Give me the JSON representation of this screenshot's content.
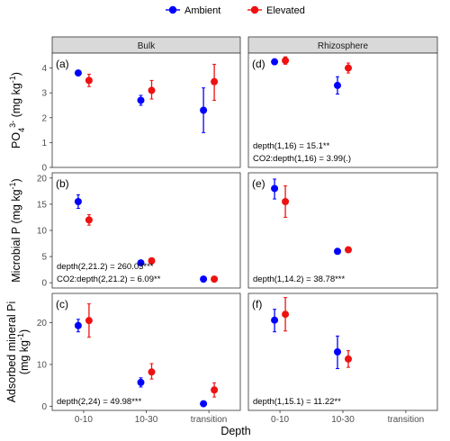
{
  "chart_data": {
    "type": "scatter",
    "xlabel": "Depth",
    "categories": [
      "0-10",
      "10-30",
      "transition"
    ],
    "legend": {
      "placement": "top",
      "entries": [
        {
          "name": "Ambient",
          "color": "#0000ff"
        },
        {
          "name": "Elevated",
          "color": "#ee1111"
        }
      ]
    },
    "columns": [
      "Bulk",
      "Rhizosphere"
    ],
    "rows": [
      {
        "ylabel_lines": [
          [
            "PO",
            "4",
            "3-",
            " (mg kg",
            "-1",
            ")"
          ]
        ],
        "ylim": [
          0,
          4.6
        ],
        "yticks": [
          0,
          1,
          2,
          3,
          4
        ]
      },
      {
        "ylabel_lines": [
          [
            "Microbial P (mg kg",
            "-1",
            ")"
          ]
        ],
        "ylim": [
          -1,
          21
        ],
        "yticks": [
          0,
          5,
          10,
          15,
          20
        ]
      },
      {
        "ylabel_lines": [
          [
            "Adsorbed mineral Pi"
          ],
          [
            "(mg kg",
            "-1",
            ")"
          ]
        ],
        "ylim": [
          -1,
          27
        ],
        "yticks": [
          0,
          10,
          20
        ]
      }
    ],
    "panels": [
      {
        "label": "(a)",
        "row": 0,
        "col": 0,
        "annotations": [],
        "series": [
          {
            "name": "Ambient",
            "points": [
              {
                "x": "0-10",
                "y": 3.8,
                "lo": 3.8,
                "hi": 3.8
              },
              {
                "x": "10-30",
                "y": 2.7,
                "lo": 2.5,
                "hi": 2.9
              },
              {
                "x": "transition",
                "y": 2.3,
                "lo": 1.4,
                "hi": 3.2
              }
            ]
          },
          {
            "name": "Elevated",
            "points": [
              {
                "x": "0-10",
                "y": 3.5,
                "lo": 3.25,
                "hi": 3.75
              },
              {
                "x": "10-30",
                "y": 3.1,
                "lo": 2.75,
                "hi": 3.5
              },
              {
                "x": "transition",
                "y": 3.45,
                "lo": 2.7,
                "hi": 4.15
              }
            ]
          }
        ]
      },
      {
        "label": "(d)",
        "row": 0,
        "col": 1,
        "annotations": [
          "depth(1,16) = 15.1**",
          "CO2:depth(1,16) = 3.99(.)"
        ],
        "series": [
          {
            "name": "Ambient",
            "points": [
              {
                "x": "0-10",
                "y": 4.25,
                "lo": 4.15,
                "hi": 4.35
              },
              {
                "x": "10-30",
                "y": 3.3,
                "lo": 2.95,
                "hi": 3.65
              }
            ]
          },
          {
            "name": "Elevated",
            "points": [
              {
                "x": "0-10",
                "y": 4.3,
                "lo": 4.15,
                "hi": 4.45
              },
              {
                "x": "10-30",
                "y": 4.0,
                "lo": 3.8,
                "hi": 4.2
              }
            ]
          }
        ]
      },
      {
        "label": "(b)",
        "row": 1,
        "col": 0,
        "annotations": [
          "depth(2,21.2) = 260.03***",
          "CO2:depth(2,21.2) = 6.09**"
        ],
        "series": [
          {
            "name": "Ambient",
            "points": [
              {
                "x": "0-10",
                "y": 15.5,
                "lo": 14.2,
                "hi": 16.8
              },
              {
                "x": "10-30",
                "y": 3.8,
                "lo": 3.6,
                "hi": 4.0
              },
              {
                "x": "transition",
                "y": 0.7,
                "lo": 0.6,
                "hi": 0.8
              }
            ]
          },
          {
            "name": "Elevated",
            "points": [
              {
                "x": "0-10",
                "y": 12.0,
                "lo": 11.0,
                "hi": 13.0
              },
              {
                "x": "10-30",
                "y": 4.2,
                "lo": 4.0,
                "hi": 4.4
              },
              {
                "x": "transition",
                "y": 0.7,
                "lo": 0.6,
                "hi": 0.8
              }
            ]
          }
        ]
      },
      {
        "label": "(e)",
        "row": 1,
        "col": 1,
        "annotations": [
          "depth(1,14.2) = 38.78***"
        ],
        "series": [
          {
            "name": "Ambient",
            "points": [
              {
                "x": "0-10",
                "y": 18.0,
                "lo": 16.0,
                "hi": 19.8
              },
              {
                "x": "10-30",
                "y": 6.0,
                "lo": 5.8,
                "hi": 6.2
              }
            ]
          },
          {
            "name": "Elevated",
            "points": [
              {
                "x": "0-10",
                "y": 15.5,
                "lo": 12.5,
                "hi": 18.5
              },
              {
                "x": "10-30",
                "y": 6.3,
                "lo": 5.9,
                "hi": 6.7
              }
            ]
          }
        ]
      },
      {
        "label": "(c)",
        "row": 2,
        "col": 0,
        "annotations": [
          "depth(2,24) = 49.98***"
        ],
        "series": [
          {
            "name": "Ambient",
            "points": [
              {
                "x": "0-10",
                "y": 19.3,
                "lo": 17.8,
                "hi": 20.8
              },
              {
                "x": "10-30",
                "y": 5.7,
                "lo": 4.6,
                "hi": 6.8
              },
              {
                "x": "transition",
                "y": 0.6,
                "lo": 0.4,
                "hi": 0.8
              }
            ]
          },
          {
            "name": "Elevated",
            "points": [
              {
                "x": "0-10",
                "y": 20.5,
                "lo": 16.5,
                "hi": 24.5
              },
              {
                "x": "10-30",
                "y": 8.2,
                "lo": 6.5,
                "hi": 10.2
              },
              {
                "x": "transition",
                "y": 3.9,
                "lo": 2.2,
                "hi": 5.6
              }
            ]
          }
        ]
      },
      {
        "label": "(f)",
        "row": 2,
        "col": 1,
        "annotations": [
          "depth(1,15.1) = 11.22**"
        ],
        "series": [
          {
            "name": "Ambient",
            "points": [
              {
                "x": "0-10",
                "y": 20.6,
                "lo": 17.8,
                "hi": 23.2
              },
              {
                "x": "10-30",
                "y": 13.0,
                "lo": 9.0,
                "hi": 16.8
              }
            ]
          },
          {
            "name": "Elevated",
            "points": [
              {
                "x": "0-10",
                "y": 22.0,
                "lo": 18.0,
                "hi": 26.0
              },
              {
                "x": "10-30",
                "y": 11.3,
                "lo": 9.3,
                "hi": 13.3
              }
            ]
          }
        ]
      }
    ]
  }
}
